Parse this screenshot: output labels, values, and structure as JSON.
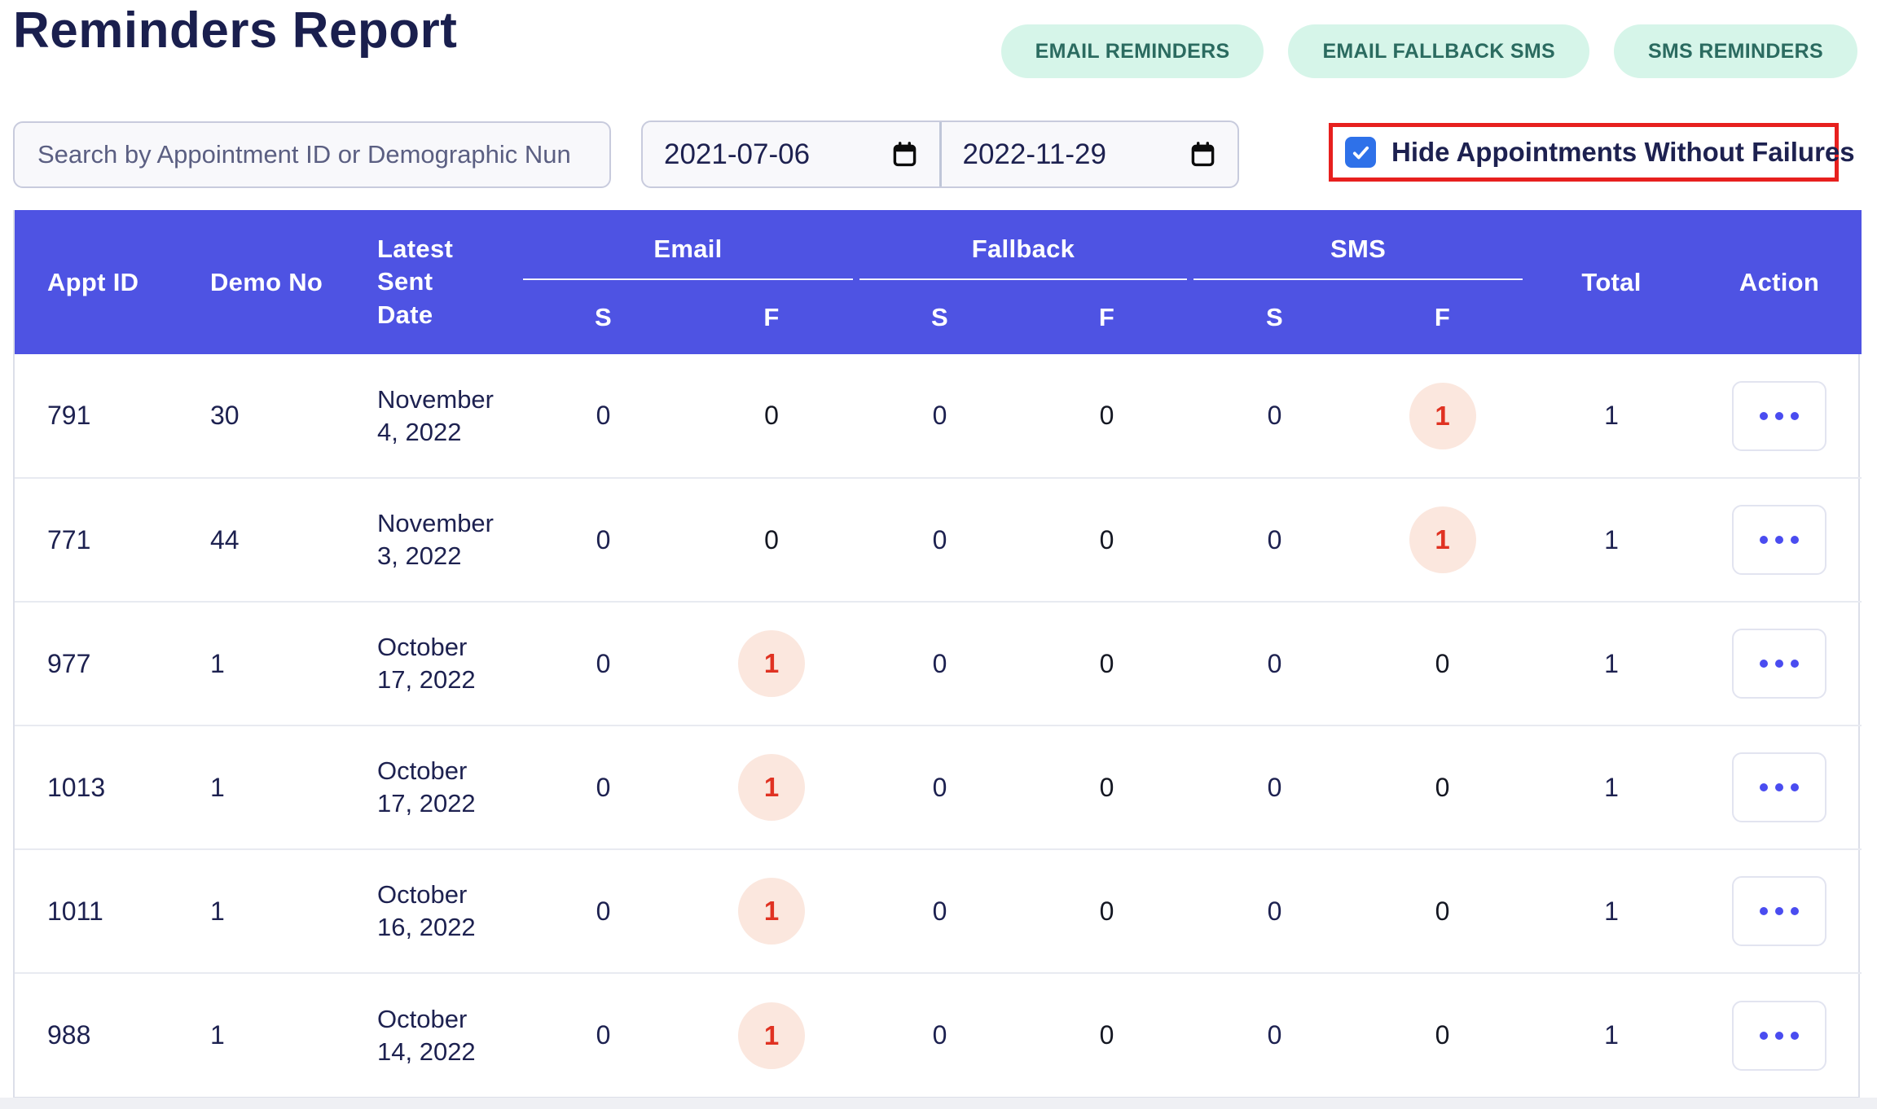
{
  "page": {
    "title": "Reminders Report"
  },
  "buttons": [
    {
      "label": "EMAIL REMINDERS"
    },
    {
      "label": "EMAIL FALLBACK SMS"
    },
    {
      "label": "SMS REMINDERS"
    }
  ],
  "filters": {
    "search_placeholder": "Search by Appointment ID or Demographic Nun",
    "date_from": "2021-07-06",
    "date_to": "2022-11-29",
    "hide_label": "Hide Appointments Without Failures",
    "hide_checkbox_checked": true
  },
  "icons": {
    "calendar": "calendar-icon",
    "checkbox_check": "check-icon",
    "row_actions": "ellipsis-icon"
  },
  "colors": {
    "header_bg": "#4e53e3",
    "title_text": "#1a1f4e",
    "body_text": "#1d2150",
    "pill_bg": "#d6f5e9",
    "pill_text": "#2b6b60",
    "badge_bg": "#fbe7de",
    "badge_text": "#e03222",
    "checkbox_blue": "#2e71e9",
    "highlight_red": "#e7201e",
    "action_dots": "#4a4cf0"
  },
  "table": {
    "col_appt_id": "Appt ID",
    "col_demo_no": "Demo No",
    "col_latest_sent_date": "Latest Sent Date",
    "groups": [
      {
        "label": "Email"
      },
      {
        "label": "Fallback"
      },
      {
        "label": "SMS"
      }
    ],
    "sub_sent": "S",
    "sub_failed": "F",
    "col_total": "Total",
    "col_action": "Action",
    "rows": [
      {
        "appt_id": "791",
        "demo_no": "30",
        "date_lines": [
          "November",
          "4, 2022"
        ],
        "email_s": "0",
        "email_f": "0",
        "fallback_s": "0",
        "fallback_f": "0",
        "sms_s": "0",
        "sms_f": "1",
        "sms_f_badge": true,
        "total": "1"
      },
      {
        "appt_id": "771",
        "demo_no": "44",
        "date_lines": [
          "November",
          "3, 2022"
        ],
        "email_s": "0",
        "email_f": "0",
        "fallback_s": "0",
        "fallback_f": "0",
        "sms_s": "0",
        "sms_f": "1",
        "sms_f_badge": true,
        "total": "1"
      },
      {
        "appt_id": "977",
        "demo_no": "1",
        "date_lines": [
          "October",
          "17, 2022"
        ],
        "email_s": "0",
        "email_f": "1",
        "email_f_badge": true,
        "fallback_s": "0",
        "fallback_f": "0",
        "sms_s": "0",
        "sms_f": "0",
        "total": "1"
      },
      {
        "appt_id": "1013",
        "demo_no": "1",
        "date_lines": [
          "October",
          "17, 2022"
        ],
        "email_s": "0",
        "email_f": "1",
        "email_f_badge": true,
        "fallback_s": "0",
        "fallback_f": "0",
        "sms_s": "0",
        "sms_f": "0",
        "total": "1"
      },
      {
        "appt_id": "1011",
        "demo_no": "1",
        "date_lines": [
          "October",
          "16, 2022"
        ],
        "email_s": "0",
        "email_f": "1",
        "email_f_badge": true,
        "fallback_s": "0",
        "fallback_f": "0",
        "sms_s": "0",
        "sms_f": "0",
        "total": "1"
      },
      {
        "appt_id": "988",
        "demo_no": "1",
        "date_lines": [
          "October",
          "14, 2022"
        ],
        "email_s": "0",
        "email_f": "1",
        "email_f_badge": true,
        "fallback_s": "0",
        "fallback_f": "0",
        "sms_s": "0",
        "sms_f": "0",
        "total": "1"
      }
    ]
  }
}
